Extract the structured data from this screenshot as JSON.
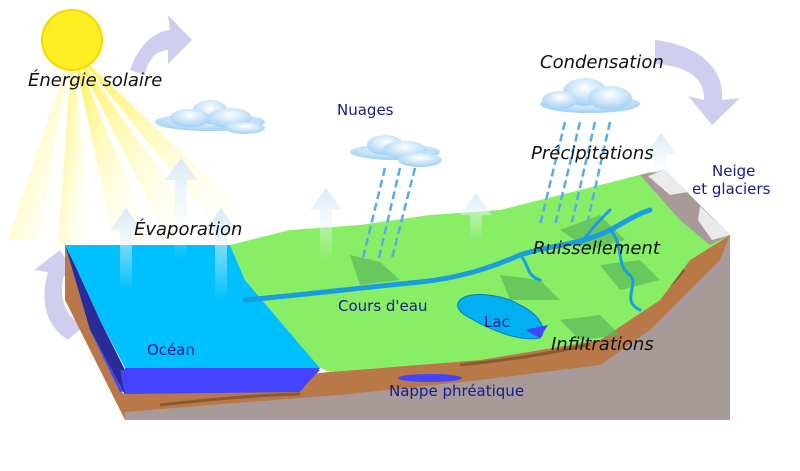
{
  "labels": {
    "solar_energy": "Énergie solaire",
    "evaporation": "Évaporation",
    "clouds": "Nuages",
    "condensation": "Condensation",
    "precipitation": "Précipitations",
    "snow_glaciers_line1": "Neige",
    "snow_glaciers_line2": "et glaciers",
    "runoff": "Ruissellement",
    "streams": "Cours d'eau",
    "lake": "Lac",
    "infiltration": "Infiltrations",
    "ocean": "Océan",
    "groundwater": "Nappe phréatique"
  },
  "colors": {
    "sun": "#ffee22",
    "sunbeam": "#fff06a",
    "ocean": "#00c0ff",
    "ocean_deep": "#4444ff",
    "land": "#88ee66",
    "soil": "#b87848",
    "bedrock": "#a89a98",
    "river": "#1a9de0",
    "cloud": "#bfe0ff",
    "cycle_arrow": "#c8c6ec",
    "vapor": "#d8ecf8",
    "rain": "#5aaae8",
    "process_text": "#111111",
    "feature_text": "#1a1a8a"
  }
}
